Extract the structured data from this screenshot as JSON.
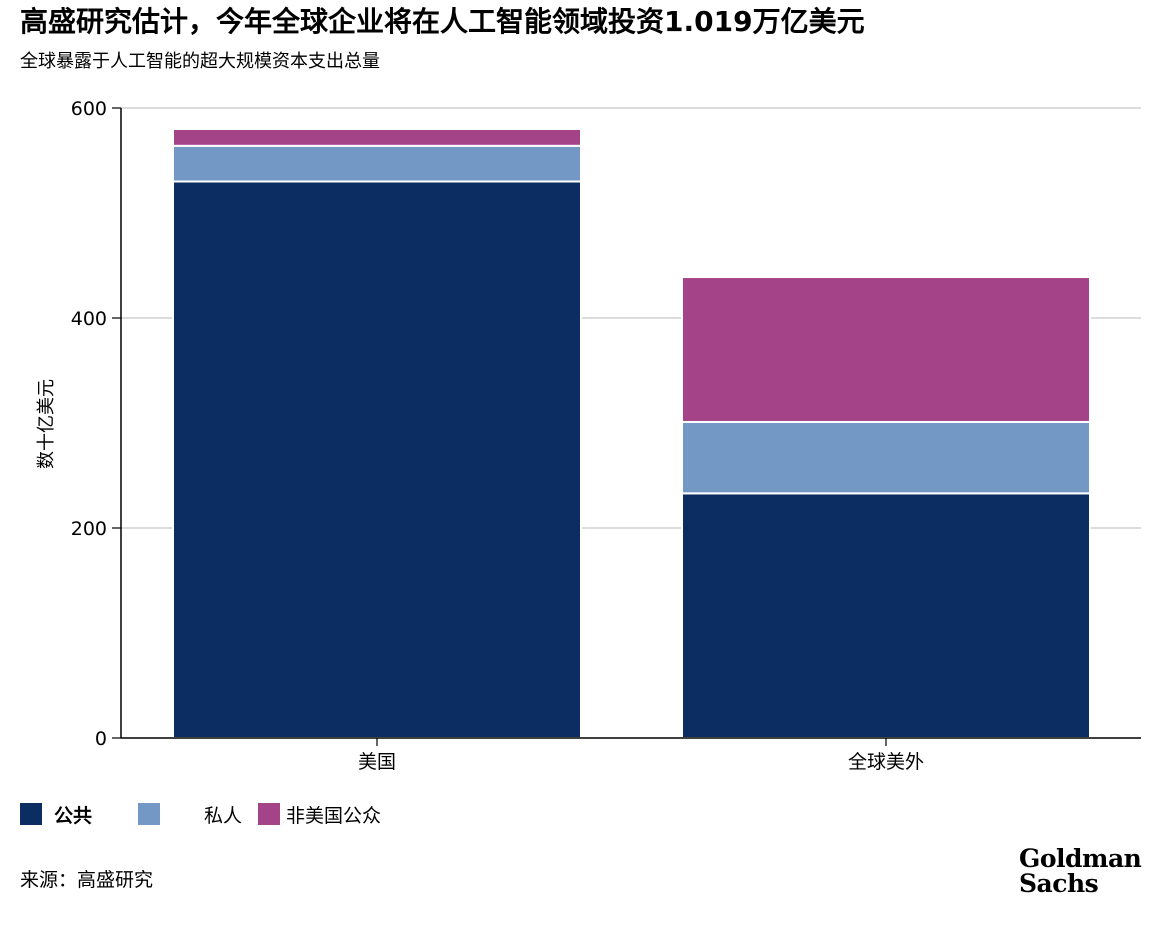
{
  "header": {
    "title": "高盛研究估计，今年全球企业将在人工智能领域投资1.019万亿美元",
    "subtitle": "全球暴露于人工智能的超大规模资本支出总量"
  },
  "chart_data": {
    "type": "bar",
    "stacked": true,
    "categories": [
      "美国",
      "全球美外"
    ],
    "series": [
      {
        "name": "公共",
        "color": "#0b2d62",
        "values": [
          530,
          233
        ]
      },
      {
        "name": "私人",
        "color": "#7398c5",
        "values": [
          34,
          68
        ]
      },
      {
        "name": "非美国公众",
        "color": "#a44388",
        "values": [
          16,
          138
        ]
      }
    ],
    "title": "",
    "xlabel": "",
    "ylabel": "数十亿美元",
    "ylim": [
      0,
      600
    ],
    "yticks": [
      0,
      200,
      400,
      600
    ],
    "grid": true,
    "legend_placement": "bottom-left"
  },
  "footer": {
    "source": "来源：高盛研究",
    "logo_line1": "Goldman",
    "logo_line2": "Sachs"
  }
}
